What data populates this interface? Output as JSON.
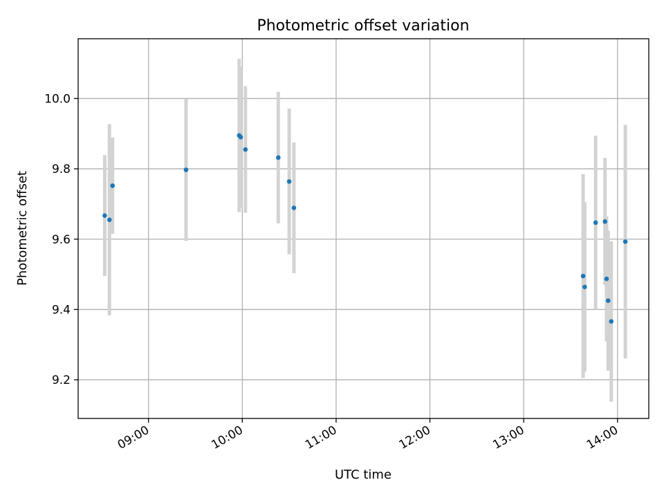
{
  "chart_data": {
    "type": "scatter",
    "title": "Photometric offset variation",
    "xlabel": "UTC time",
    "ylabel": "Photometric offset",
    "x_unit": "hours UTC",
    "xlim": [
      "08:15",
      "14:20"
    ],
    "ylim": [
      9.09,
      10.17
    ],
    "x_ticks": [
      "09:00",
      "10:00",
      "11:00",
      "12:00",
      "13:00",
      "14:00"
    ],
    "y_ticks": [
      "9.2",
      "9.4",
      "9.6",
      "9.8",
      "10.0"
    ],
    "grid": true,
    "errorbar_color": "#d3d3d3",
    "point_color": "#1f77b4",
    "points": [
      {
        "time": "08:32",
        "y": 9.667,
        "err": 0.172
      },
      {
        "time": "08:35",
        "y": 9.655,
        "err": 0.272
      },
      {
        "time": "08:37",
        "y": 9.752,
        "err": 0.137
      },
      {
        "time": "09:24",
        "y": 9.797,
        "err": 0.202
      },
      {
        "time": "09:58",
        "y": 9.895,
        "err": 0.218
      },
      {
        "time": "09:59",
        "y": 9.89,
        "err": 0.2
      },
      {
        "time": "10:02",
        "y": 9.855,
        "err": 0.18
      },
      {
        "time": "10:23",
        "y": 9.832,
        "err": 0.187
      },
      {
        "time": "10:30",
        "y": 9.764,
        "err": 0.207
      },
      {
        "time": "10:33",
        "y": 9.689,
        "err": 0.186
      },
      {
        "time": "13:38",
        "y": 9.495,
        "err": 0.29
      },
      {
        "time": "13:39",
        "y": 9.464,
        "err": 0.241
      },
      {
        "time": "13:46",
        "y": 9.647,
        "err": 0.247
      },
      {
        "time": "13:52",
        "y": 9.65,
        "err": 0.181
      },
      {
        "time": "13:53",
        "y": 9.487,
        "err": 0.178
      },
      {
        "time": "13:54",
        "y": 9.425,
        "err": 0.199
      },
      {
        "time": "13:56",
        "y": 9.366,
        "err": 0.228
      },
      {
        "time": "14:05",
        "y": 9.593,
        "err": 0.332
      }
    ]
  }
}
